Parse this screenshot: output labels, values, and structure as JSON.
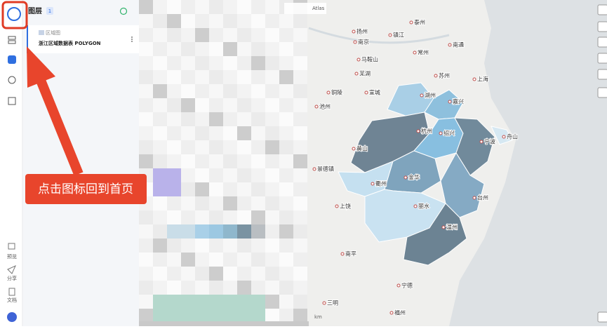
{
  "sidebar": {
    "nav": [
      "预览",
      "分享",
      "文档"
    ]
  },
  "panel": {
    "title": "图层",
    "count": "1",
    "layer_group": "区域图",
    "layer_name": "浙江区域数据表 POLYGON"
  },
  "annotation": "点击图标回到首页",
  "map": {
    "attribution": "Atlas",
    "scale_unit": "km",
    "labels": [
      "泰州",
      "扬州",
      "镇江",
      "南京",
      "常州",
      "南通",
      "马鞍山",
      "芜湖",
      "苏州",
      "上海",
      "铜陵",
      "宣城",
      "湖州",
      "嘉兴",
      "池州",
      "杭州",
      "绍兴",
      "宁波",
      "舟山",
      "黄山",
      "衢州",
      "金华",
      "景德镇",
      "上饶",
      "丽水",
      "台州",
      "温州",
      "南平",
      "宁德",
      "三明",
      "福州"
    ]
  }
}
